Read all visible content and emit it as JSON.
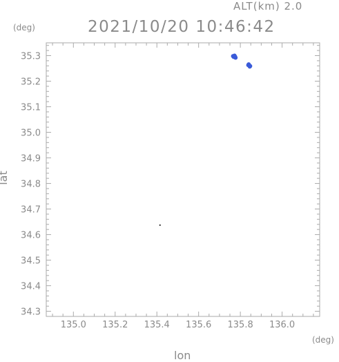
{
  "header": {
    "altitude_label": "ALT(km) 2.0",
    "timestamp": "2021/10/20 10:46:42"
  },
  "chart_data": {
    "type": "scatter",
    "xlabel": "lon",
    "ylabel": "lat",
    "x_unit": "(deg)",
    "y_unit": "(deg)",
    "xlim": [
      134.87,
      136.18
    ],
    "ylim": [
      34.28,
      35.35
    ],
    "xticks": [
      "135.0",
      "135.2",
      "135.4",
      "135.6",
      "135.8",
      "136.0"
    ],
    "yticks": [
      "35.3",
      "35.2",
      "35.1",
      "35.0",
      "34.9",
      "34.8",
      "34.7",
      "34.6",
      "34.5",
      "34.4",
      "34.3"
    ],
    "grid": false,
    "series": [
      {
        "color": "#3a5bd9",
        "points": [
          [
            135.765,
            35.298
          ],
          [
            135.77,
            35.297
          ],
          [
            135.775,
            35.296
          ],
          [
            135.772,
            35.3
          ],
          [
            135.768,
            35.295
          ],
          [
            135.777,
            35.292
          ],
          [
            135.838,
            35.263
          ],
          [
            135.843,
            35.262
          ],
          [
            135.847,
            35.259
          ],
          [
            135.84,
            35.266
          ],
          [
            135.845,
            35.257
          ]
        ]
      },
      {
        "color": "#000000",
        "points": [
          [
            135.415,
            34.637
          ]
        ]
      }
    ]
  }
}
